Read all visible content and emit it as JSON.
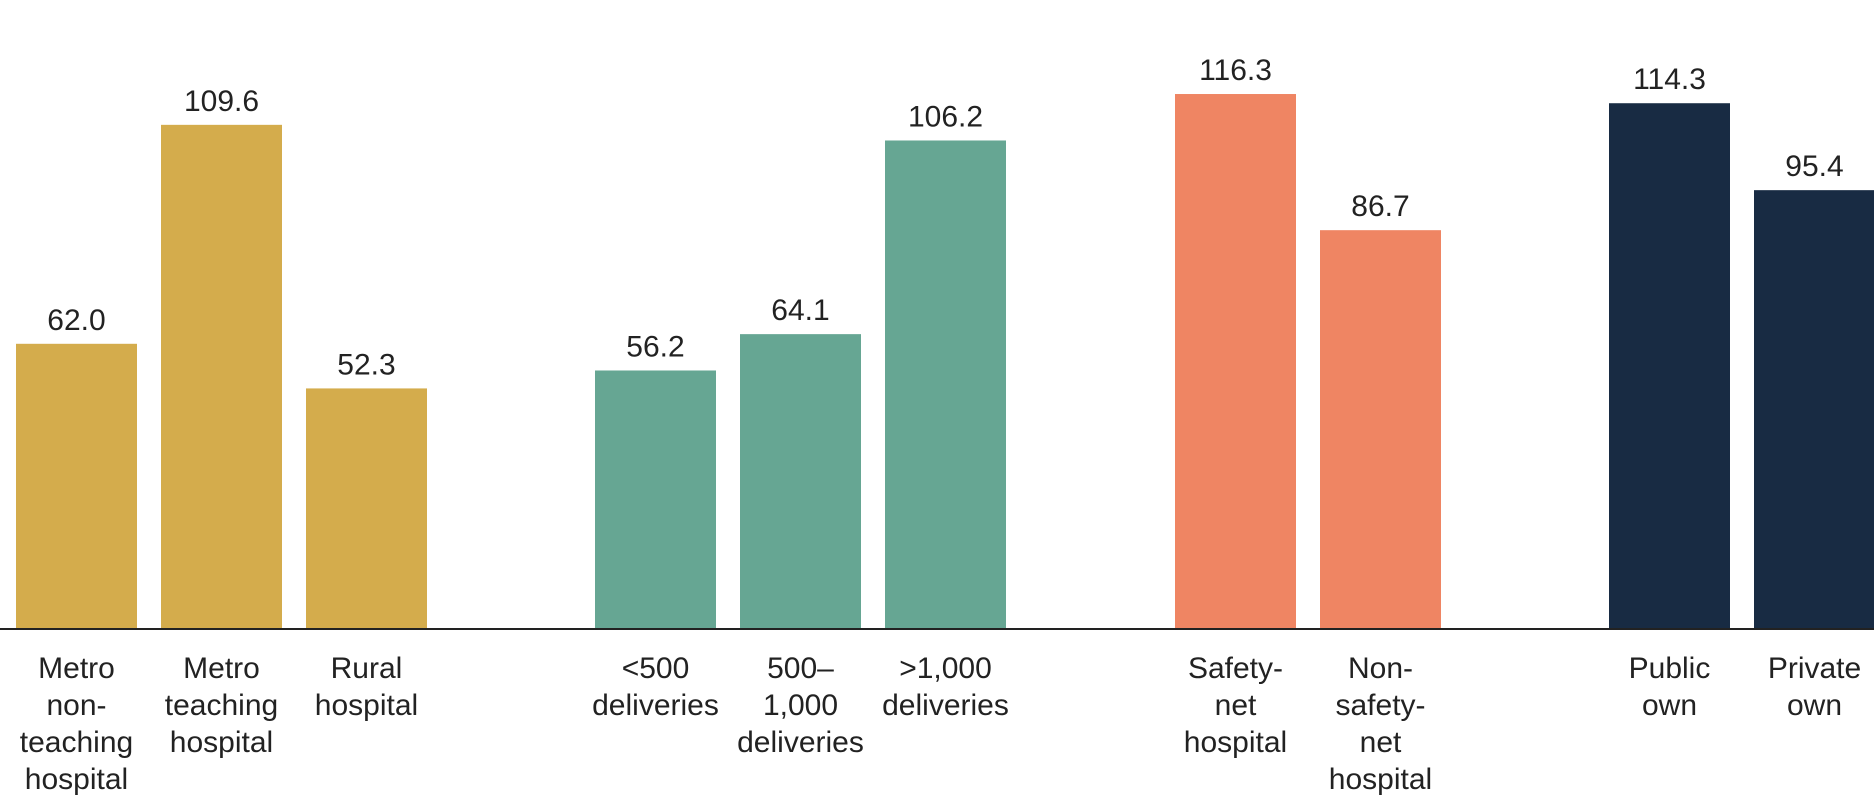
{
  "chart_data": {
    "type": "bar",
    "title": "",
    "xlabel": "",
    "ylabel": "",
    "ylim": [
      0,
      125
    ],
    "grid": false,
    "legend": "none",
    "groups": [
      {
        "color": "#D4AC4C",
        "bars": [
          {
            "label": [
              "Metro",
              "non-",
              "teaching",
              "hospital"
            ],
            "value": 62.0,
            "value_label": "62.0"
          },
          {
            "label": [
              "Metro",
              "teaching",
              "hospital"
            ],
            "value": 109.6,
            "value_label": "109.6"
          },
          {
            "label": [
              "Rural",
              "hospital"
            ],
            "value": 52.3,
            "value_label": "52.3"
          }
        ]
      },
      {
        "color": "#66A693",
        "bars": [
          {
            "label": [
              "<500",
              "deliveries"
            ],
            "value": 56.2,
            "value_label": "56.2"
          },
          {
            "label": [
              "500–",
              "1,000",
              "deliveries"
            ],
            "value": 64.1,
            "value_label": "64.1"
          },
          {
            "label": [
              ">1,000",
              "deliveries"
            ],
            "value": 106.2,
            "value_label": "106.2"
          }
        ]
      },
      {
        "color": "#EF8563",
        "bars": [
          {
            "label": [
              "Safety-",
              "net",
              "hospital"
            ],
            "value": 116.3,
            "value_label": "116.3"
          },
          {
            "label": [
              "Non-",
              "safety-",
              "net",
              "hospital"
            ],
            "value": 86.7,
            "value_label": "86.7"
          }
        ]
      },
      {
        "color": "#182B43",
        "bars": [
          {
            "label": [
              "Public",
              "own"
            ],
            "value": 114.3,
            "value_label": "114.3"
          },
          {
            "label": [
              "Private",
              "own"
            ],
            "value": 95.4,
            "value_label": "95.4"
          }
        ]
      }
    ]
  }
}
